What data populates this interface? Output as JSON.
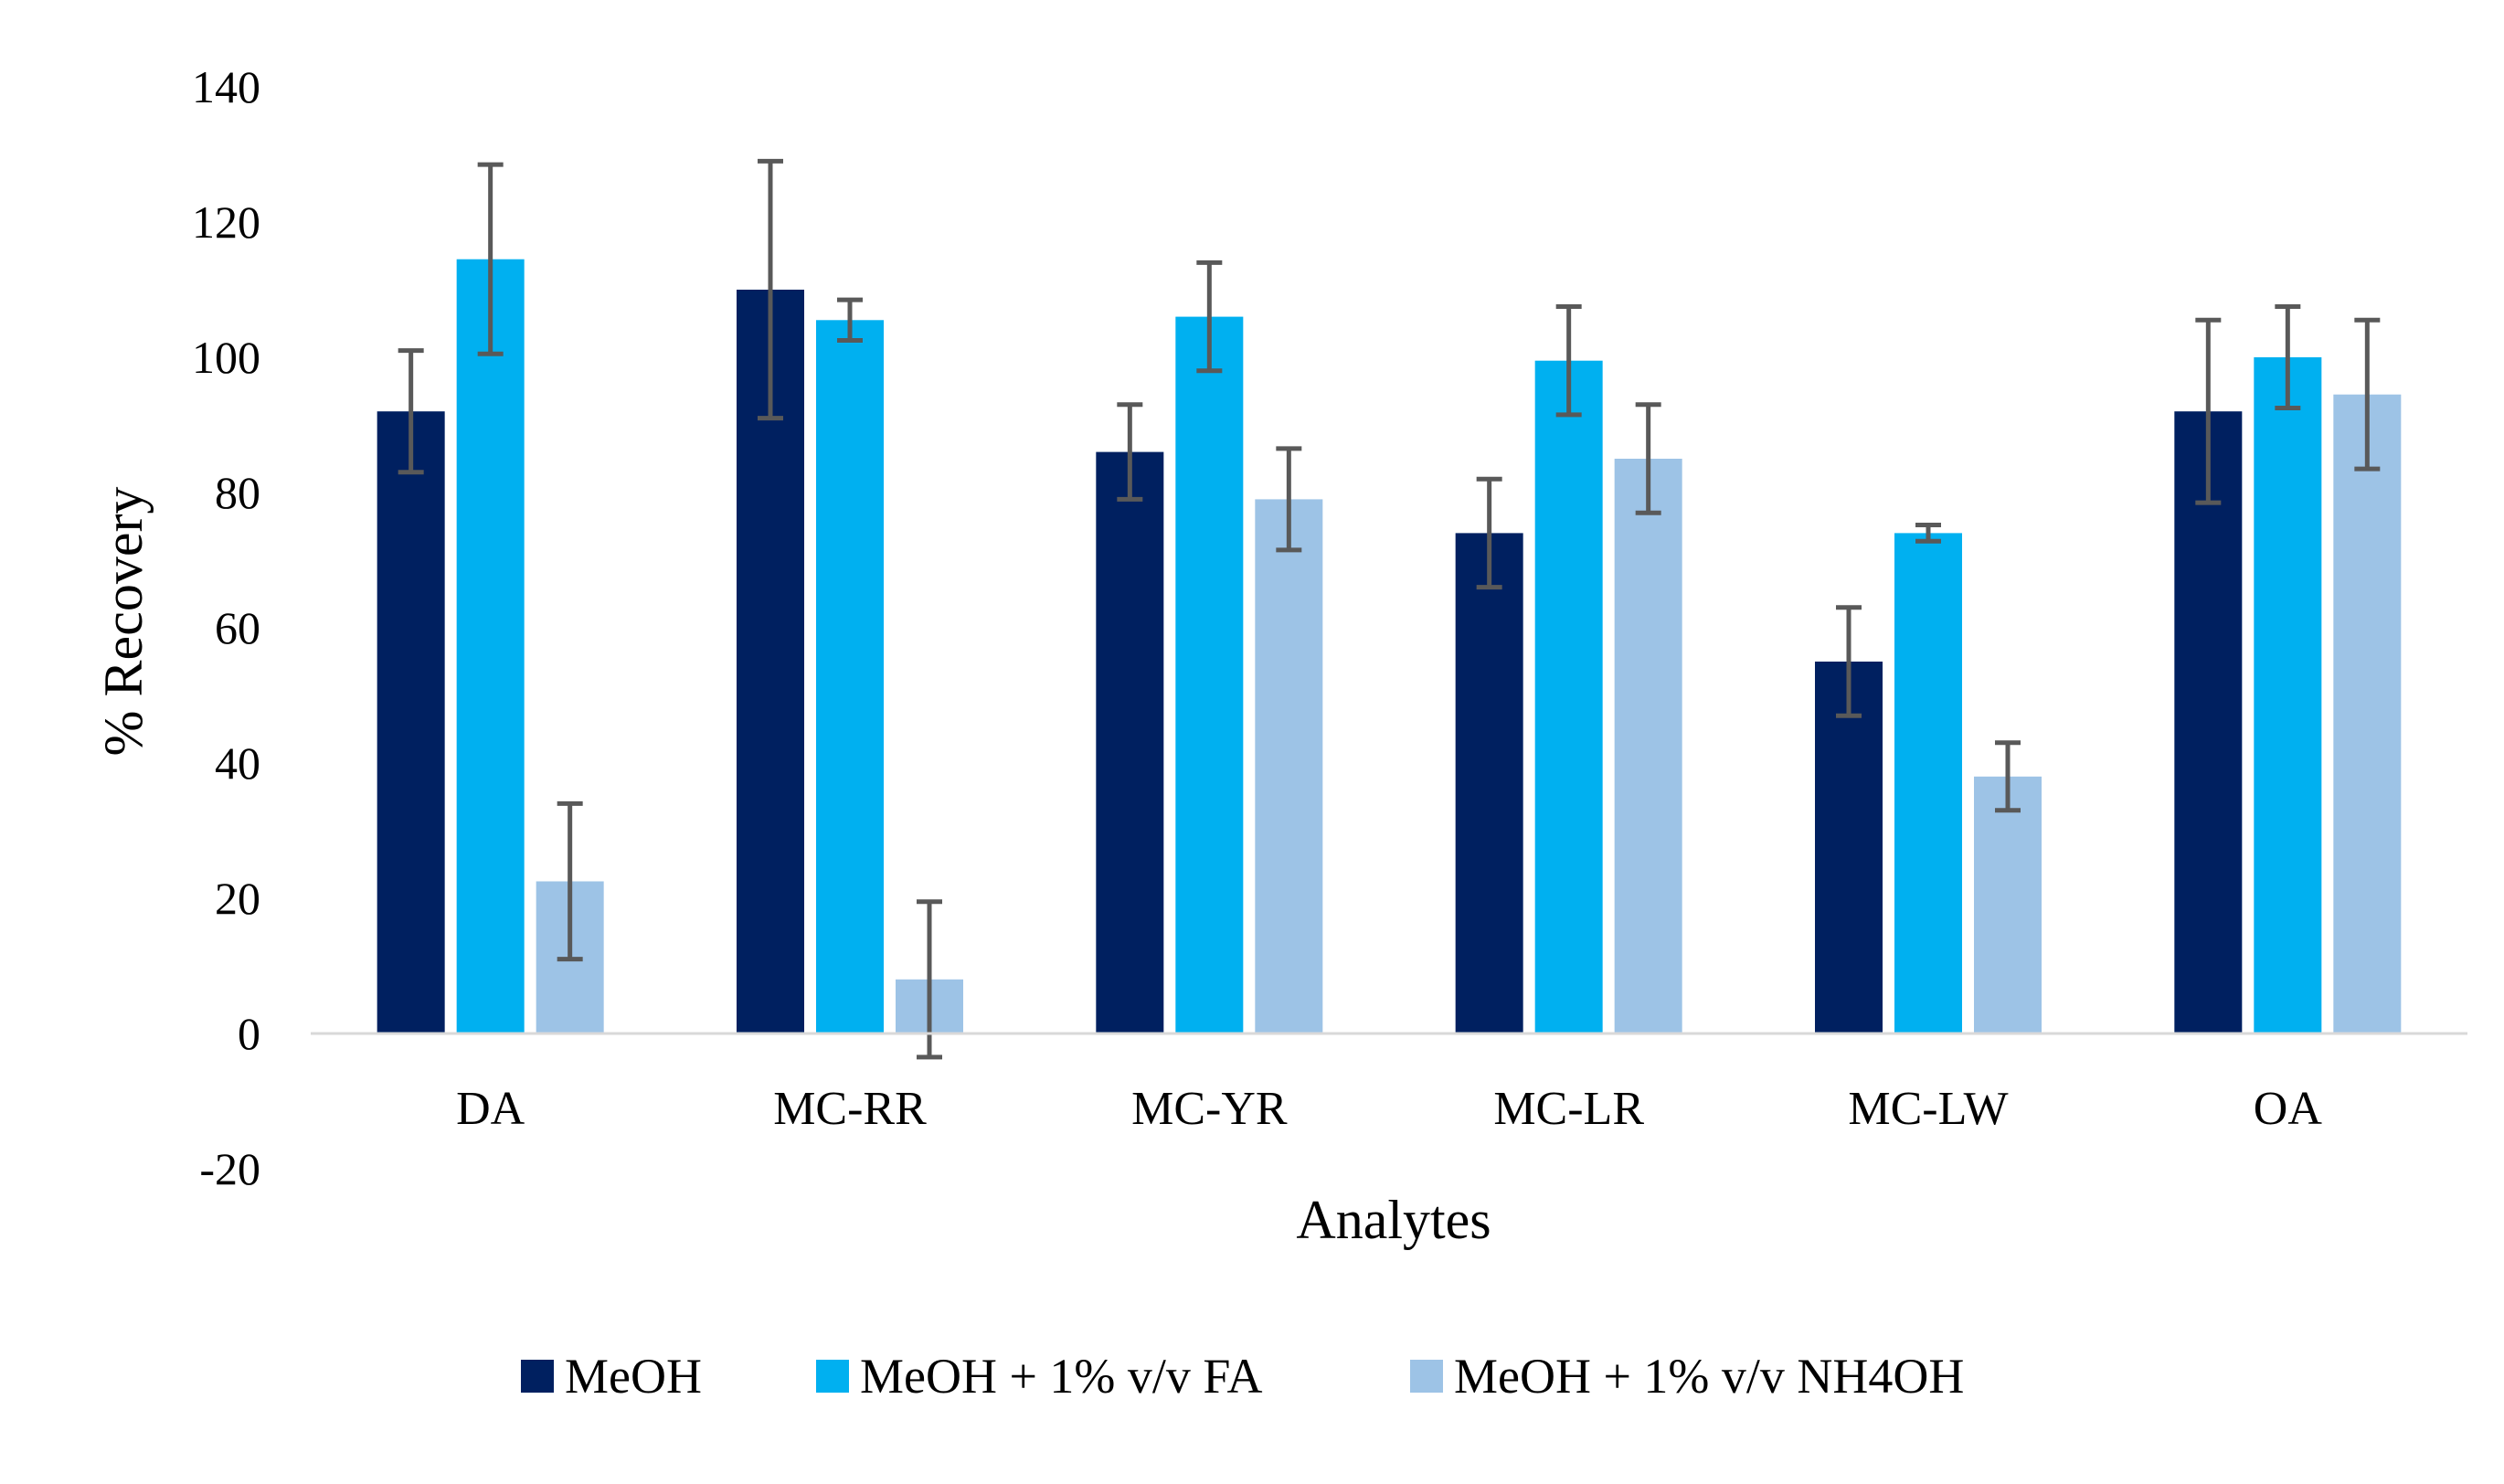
{
  "chart_data": {
    "type": "bar",
    "title": "",
    "xlabel": "Analytes",
    "ylabel": "% Recovery",
    "ylim": [
      -20,
      140
    ],
    "yticks": [
      -20,
      0,
      20,
      40,
      60,
      80,
      100,
      120,
      140
    ],
    "grid": false,
    "legend_position": "bottom-center",
    "categories": [
      "DA",
      "MC-RR",
      "MC-YR",
      "MC-LR",
      "MC-LW",
      "OA"
    ],
    "series": [
      {
        "name": "MeOH",
        "color": "#002060",
        "values": [
          92,
          110,
          86,
          74,
          55,
          92
        ],
        "errors": [
          9,
          19,
          7,
          8,
          8,
          13.5
        ]
      },
      {
        "name": "MeOH + 1% v/v FA",
        "color": "#00B0F0",
        "values": [
          114.5,
          105.5,
          106,
          99.5,
          74,
          100
        ],
        "errors": [
          14,
          3,
          8,
          8,
          1.2,
          7.5
        ]
      },
      {
        "name": "MeOH + 1% v/v NH4OH",
        "color": "#9DC3E6",
        "values": [
          22.5,
          8,
          79,
          85,
          38,
          94.5
        ],
        "errors": [
          11.5,
          11.5,
          7.5,
          8,
          5,
          11
        ]
      }
    ],
    "error_bar_color": "#595959"
  }
}
